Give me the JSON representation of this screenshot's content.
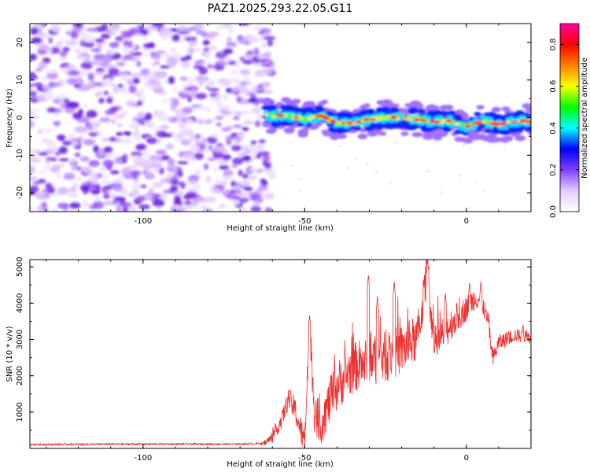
{
  "title": "PAZ1.2025.293.22.05.G11",
  "chart_data": [
    {
      "type": "heatmap",
      "id": "spectrogram",
      "xlabel": "Height of straight line (km)",
      "ylabel": "Frequency (Hz)",
      "xlim": [
        -135,
        20
      ],
      "ylim": [
        -25,
        25
      ],
      "xticks": [
        -100,
        -50,
        0
      ],
      "xtick_labels": [
        "-100",
        "-50",
        "0"
      ],
      "yticks": [
        -20,
        -10,
        0,
        10,
        20
      ],
      "ytick_labels": [
        "-20",
        "-10",
        "0",
        "10",
        "20"
      ],
      "noise_region_x": [
        -135,
        -62
      ],
      "signal_track": {
        "x": [
          -62,
          -55,
          -50,
          -45,
          -40,
          -35,
          -30,
          -25,
          -20,
          -15,
          -10,
          -5,
          0,
          5,
          10,
          15,
          20
        ],
        "freq": [
          0.5,
          0.5,
          -0.5,
          0.5,
          -1.5,
          -1.5,
          -0.5,
          0,
          0,
          -0.5,
          -1,
          -1,
          -2.5,
          -1,
          -2,
          -1,
          -1
        ]
      },
      "colorbar": {
        "label": "Normalized spectral amplitude",
        "range": [
          0,
          0.9
        ],
        "ticks": [
          0.0,
          0.2,
          0.4,
          0.6,
          0.8
        ],
        "tick_labels": [
          "0.0",
          "0.2",
          "0.4",
          "0.6",
          "0.8"
        ],
        "colors": [
          "#ffffff",
          "#e4ccff",
          "#8040ff",
          "#0000ff",
          "#00ffff",
          "#00ff00",
          "#ffff00",
          "#ff8000",
          "#ff0000",
          "#ff00a0"
        ]
      }
    },
    {
      "type": "line",
      "id": "snr",
      "xlabel": "Height of straight line (km)",
      "ylabel": "SNR (10 * v/v)",
      "xlim": [
        -135,
        20
      ],
      "ylim": [
        0,
        5200
      ],
      "xticks": [
        -100,
        -50,
        0
      ],
      "xtick_labels": [
        "-100",
        "-50",
        "0"
      ],
      "yticks": [
        1000,
        2000,
        3000,
        4000,
        5000
      ],
      "ytick_labels": [
        "1000",
        "2000",
        "3000",
        "4000",
        "5000"
      ],
      "color": "#ee3030",
      "envelope": {
        "x": [
          -135,
          -100,
          -70,
          -63,
          -60,
          -57,
          -55,
          -53,
          -52,
          -50,
          -48.5,
          -47,
          -45,
          -43,
          -40,
          -35,
          -30,
          -25,
          -20,
          -15,
          -12,
          -10,
          -5,
          0,
          3,
          5,
          7,
          8,
          10,
          15,
          20
        ],
        "y": [
          120,
          130,
          130,
          150,
          350,
          900,
          1500,
          1200,
          900,
          300,
          3700,
          1200,
          900,
          1400,
          2000,
          2500,
          2700,
          2800,
          3000,
          3300,
          5200,
          3000,
          3600,
          4000,
          4300,
          4100,
          3500,
          2500,
          3000,
          3200,
          3100
        ]
      },
      "noise_amplitude": {
        "x": [
          -135,
          -64,
          -62,
          -55,
          -50,
          -45,
          -40,
          -20,
          -10,
          0,
          8,
          20
        ],
        "y": [
          30,
          30,
          80,
          300,
          450,
          600,
          700,
          700,
          600,
          350,
          250,
          150
        ]
      },
      "spikes": [
        {
          "x": -48.5,
          "y": 3700
        },
        {
          "x": -30.3,
          "y": 4800
        },
        {
          "x": -27.5,
          "y": 4200
        },
        {
          "x": -22.3,
          "y": 4600
        },
        {
          "x": -12.0,
          "y": 5200
        },
        {
          "x": -6.5,
          "y": 4300
        },
        {
          "x": 1.0,
          "y": 4600
        },
        {
          "x": 4.5,
          "y": 4600
        },
        {
          "x": 8.0,
          "y": 2600
        },
        {
          "x": 17.5,
          "y": 3450
        }
      ]
    }
  ]
}
